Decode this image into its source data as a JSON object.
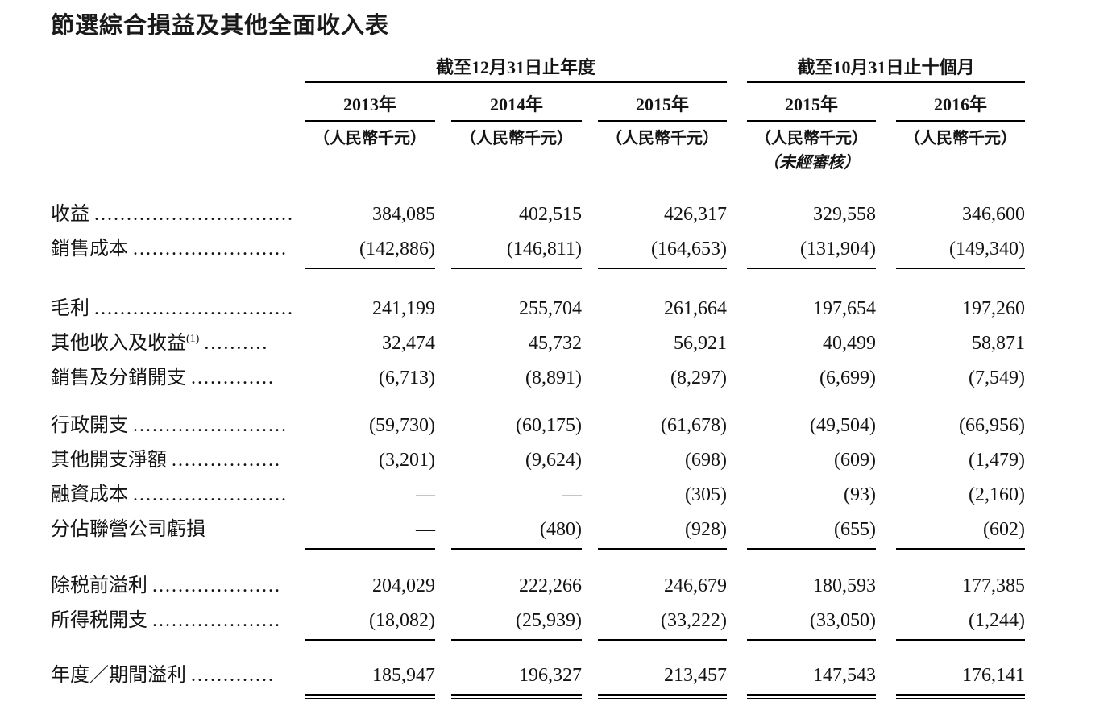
{
  "title": "節選綜合損益及其他全面收入表",
  "table": {
    "column_groups": [
      {
        "label": "截至12月31日止年度",
        "span": 3
      },
      {
        "label": "截至10月31日止十個月",
        "span": 2
      }
    ],
    "columns": [
      {
        "year": "2013年",
        "unit": "（人民幣千元）",
        "note": ""
      },
      {
        "year": "2014年",
        "unit": "（人民幣千元）",
        "note": ""
      },
      {
        "year": "2015年",
        "unit": "（人民幣千元）",
        "note": ""
      },
      {
        "year": "2015年",
        "unit": "（人民幣千元）",
        "note": "（未經審核）"
      },
      {
        "year": "2016年",
        "unit": "（人民幣千元）",
        "note": ""
      }
    ],
    "rows": [
      {
        "label": "收益",
        "sup": "",
        "dots": "...............................",
        "values": [
          "384,085",
          "402,515",
          "426,317",
          "329,558",
          "346,600"
        ],
        "space_before": 0,
        "rule_after": "none"
      },
      {
        "label": "銷售成本",
        "sup": "",
        "dots": "........................",
        "values": [
          "(142,886)",
          "(146,811)",
          "(164,653)",
          "(131,904)",
          "(149,340)"
        ],
        "space_before": 0,
        "rule_after": "single"
      },
      {
        "label": "毛利",
        "sup": "",
        "dots": "...............................",
        "values": [
          "241,199",
          "255,704",
          "261,664",
          "197,654",
          "197,260"
        ],
        "space_before": 28,
        "rule_after": "none"
      },
      {
        "label": "其他收入及收益",
        "sup": "(1)",
        "dots": "..........",
        "values": [
          "32,474",
          "45,732",
          "56,921",
          "40,499",
          "58,871"
        ],
        "space_before": 0,
        "rule_after": "none"
      },
      {
        "label": "銷售及分銷開支",
        "sup": "",
        "dots": ".............",
        "values": [
          "(6,713)",
          "(8,891)",
          "(8,297)",
          "(6,699)",
          "(7,549)"
        ],
        "space_before": 0,
        "rule_after": "none"
      },
      {
        "label": "行政開支",
        "sup": "",
        "dots": "........................",
        "values": [
          "(59,730)",
          "(60,175)",
          "(61,678)",
          "(49,504)",
          "(66,956)"
        ],
        "space_before": 16,
        "rule_after": "none"
      },
      {
        "label": "其他開支淨額",
        "sup": "",
        "dots": ".................",
        "values": [
          "(3,201)",
          "(9,624)",
          "(698)",
          "(609)",
          "(1,479)"
        ],
        "space_before": 0,
        "rule_after": "none"
      },
      {
        "label": "融資成本",
        "sup": "",
        "dots": "........................",
        "values": [
          "—",
          "—",
          "(305)",
          "(93)",
          "(2,160)"
        ],
        "space_before": 0,
        "rule_after": "none"
      },
      {
        "label": "分佔聯營公司虧損",
        "sup": "",
        "dots": "",
        "values": [
          "—",
          "(480)",
          "(928)",
          "(655)",
          "(602)"
        ],
        "space_before": 0,
        "rule_after": "single"
      },
      {
        "label": "除税前溢利",
        "sup": "",
        "dots": "....................",
        "values": [
          "204,029",
          "222,266",
          "246,679",
          "180,593",
          "177,385"
        ],
        "space_before": 24,
        "rule_after": "none"
      },
      {
        "label": "所得税開支",
        "sup": "",
        "dots": "....................",
        "values": [
          "(18,082)",
          "(25,939)",
          "(33,222)",
          "(33,050)",
          "(1,244)"
        ],
        "space_before": 0,
        "rule_after": "single"
      },
      {
        "label": "年度／期間溢利",
        "sup": "",
        "dots": ".............",
        "values": [
          "185,947",
          "196,327",
          "213,457",
          "147,543",
          "176,141"
        ],
        "space_before": 22,
        "rule_after": "double"
      }
    ]
  }
}
